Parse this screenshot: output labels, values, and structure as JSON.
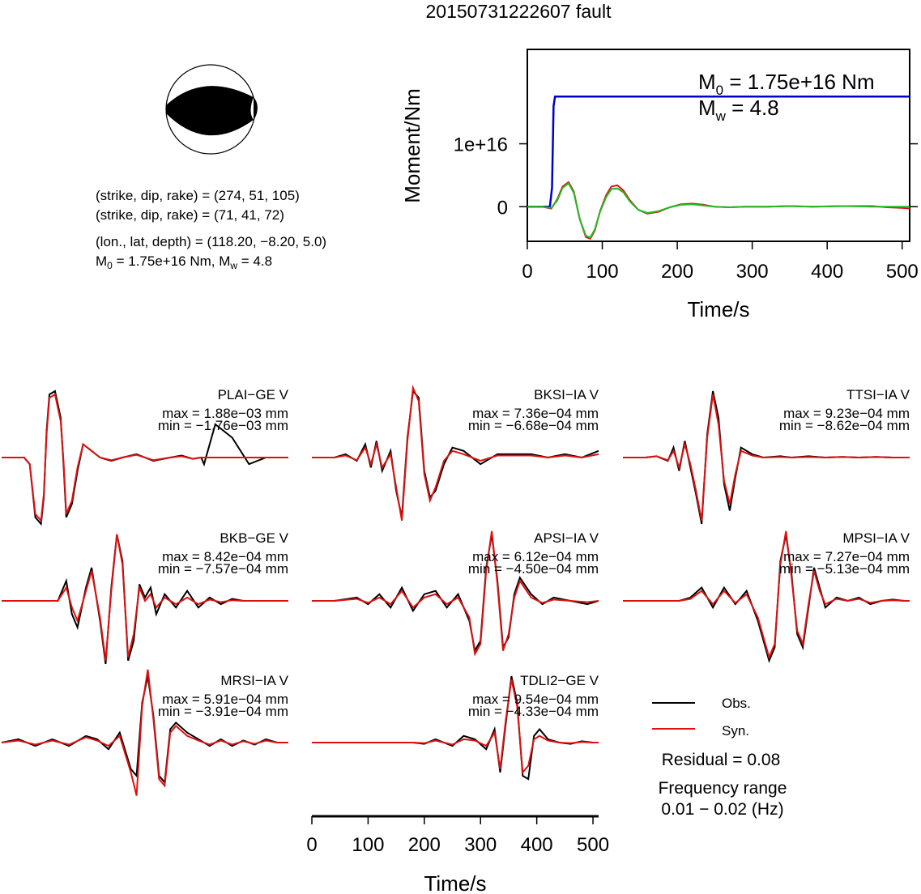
{
  "title": "20150731222607 fault",
  "source_params": {
    "strike_line_1": "(strike, dip, rake) = (274, 51, 105)",
    "strike_line_2": "(strike, dip, rake) = (71, 41, 72)",
    "location_line": "(lon., lat, depth) = (118.20, −8.20, 5.0)",
    "moment_prefix": "M",
    "moment_sub": "0",
    "moment_mid": " = 1.75e+16 Nm, M",
    "mw_sub": "w",
    "moment_suffix": " = 4.8"
  },
  "moment_panel": {
    "m0_label": "M",
    "m0_sub": "0",
    "m0_value": " = 1.75e+16 Nm",
    "mw_label": "M",
    "mw_sub": "w",
    "mw_value": " = 4.8"
  },
  "legend": {
    "obs_label": "Obs.",
    "syn_label": "Syn.",
    "residual": "Residual = 0.08",
    "freq_title": "Frequency range",
    "freq_value": "0.01 − 0.02 (Hz)"
  },
  "colors": {
    "observed": "#000000",
    "synthetic": "#dd1111",
    "moment": "#0000cc",
    "stf_green": "#22bb22"
  },
  "chart_data": [
    {
      "type": "line",
      "ylabel": "Moment/Nm",
      "xlabel": "Time/s",
      "xlim": [
        0,
        510
      ],
      "ylim": [
        -5500000000000000.0,
        2.5e+16
      ],
      "xticks": [
        0,
        100,
        200,
        300,
        400,
        500
      ],
      "yticks": [
        0,
        1e+16
      ],
      "ytick_labels": [
        "0",
        "1e+16"
      ],
      "series": [
        {
          "color": "#0000cc",
          "x": [
            0,
            30,
            33,
            35,
            37,
            510
          ],
          "y": [
            0,
            0,
            3000000000000000.0,
            1.6e+16,
            1.75e+16,
            1.75e+16
          ]
        },
        {
          "color": "#dd1111",
          "x": [
            0,
            20,
            32,
            40,
            47,
            55,
            62,
            70,
            78,
            84,
            90,
            97,
            105,
            112,
            120,
            128,
            137,
            148,
            160,
            175,
            190,
            205,
            220,
            235,
            250,
            270,
            290,
            320,
            350,
            380,
            420,
            460,
            480,
            500,
            510
          ],
          "y": [
            0,
            0,
            -300000000000000.0,
            1200000000000000.0,
            3200000000000000.0,
            3900000000000000.0,
            2400000000000000.0,
            -2000000000000000.0,
            -4800000000000000.0,
            -5100000000000000.0,
            -3800000000000000.0,
            -700000000000000.0,
            1800000000000000.0,
            3200000000000000.0,
            3400000000000000.0,
            2600000000000000.0,
            1000000000000000.0,
            -500000000000000.0,
            -1100000000000000.0,
            -800000000000000.0,
            -100000000000000.0,
            400000000000000.0,
            500000000000000.0,
            300000000000000.0,
            0,
            -100000000000000.0,
            0,
            0,
            100000000000000.0,
            0,
            100000000000000.0,
            100000000000000.0,
            -100000000000000.0,
            -200000000000000.0,
            -300000000000000.0
          ]
        },
        {
          "color": "#22bb22",
          "x": [
            0,
            20,
            32,
            40,
            47,
            55,
            62,
            70,
            78,
            84,
            90,
            97,
            105,
            112,
            120,
            128,
            137,
            148,
            160,
            175,
            190,
            205,
            220,
            235,
            250,
            270,
            290,
            320,
            350,
            380,
            420,
            460,
            480,
            500,
            510
          ],
          "y": [
            0,
            0,
            -200000000000000.0,
            1000000000000000.0,
            3000000000000000.0,
            3700000000000000.0,
            2200000000000000.0,
            -2000000000000000.0,
            -4600000000000000.0,
            -4900000000000000.0,
            -3600000000000000.0,
            -800000000000000.0,
            1500000000000000.0,
            2800000000000000.0,
            2900000000000000.0,
            2300000000000000.0,
            800000000000000.0,
            -500000000000000.0,
            -1000000000000000.0,
            -700000000000000.0,
            -100000000000000.0,
            300000000000000.0,
            400000000000000.0,
            200000000000000.0,
            0,
            -100000000000000.0,
            0,
            0,
            100000000000000.0,
            0,
            100000000000000.0,
            0,
            0,
            0,
            0
          ]
        }
      ]
    },
    {
      "type": "line",
      "xlabel": "Time/s",
      "xlim": [
        0,
        510
      ],
      "xticks": [
        0,
        100,
        200,
        300,
        400,
        500
      ],
      "stations": [
        {
          "name": "PLAI−GE V",
          "max": "max = 1.88e−03 mm",
          "min": "min = −1.76e−03 mm",
          "x": [
            0,
            40,
            50,
            60,
            70,
            75,
            80,
            85,
            95,
            105,
            110,
            115,
            125,
            135,
            145,
            160,
            175,
            195,
            215,
            240,
            270,
            300,
            320,
            340,
            355,
            360,
            380,
            410,
            440,
            470,
            500,
            510
          ],
          "obs": [
            0,
            0,
            -0.1,
            -0.9,
            -1.0,
            -0.6,
            0.4,
            0.95,
            1.0,
            0.6,
            -0.1,
            -0.9,
            -0.7,
            -0.2,
            0.2,
            0.1,
            0,
            -0.05,
            0,
            0.05,
            -0.05,
            0,
            0.03,
            -0.02,
            0,
            -0.1,
            0.5,
            0.3,
            -0.1,
            0,
            0,
            0
          ],
          "syn": [
            0,
            0,
            -0.1,
            -0.85,
            -0.95,
            -0.55,
            0.35,
            0.9,
            0.95,
            0.55,
            -0.05,
            -0.85,
            -0.65,
            -0.15,
            0.2,
            0.1,
            0,
            -0.04,
            0,
            0.04,
            -0.04,
            0,
            0.02,
            -0.02,
            0,
            0,
            0,
            0,
            0,
            0,
            0,
            0
          ]
        },
        {
          "name": "BKSI−IA V",
          "max": "max = 7.36e−04 mm",
          "min": "min = −6.68e−04 mm",
          "x": [
            0,
            40,
            60,
            80,
            95,
            105,
            115,
            125,
            140,
            150,
            160,
            170,
            180,
            190,
            200,
            210,
            220,
            235,
            250,
            270,
            300,
            330,
            360,
            390,
            420,
            450,
            480,
            510
          ],
          "obs": [
            0,
            0,
            0.05,
            -0.05,
            0.2,
            -0.15,
            0.25,
            -0.2,
            0.1,
            -0.5,
            -0.9,
            0.3,
            1.0,
            0.9,
            -0.2,
            -0.6,
            -0.5,
            -0.1,
            0.15,
            0.1,
            -0.1,
            0.05,
            0.05,
            0.05,
            0,
            0.05,
            0,
            0.1
          ],
          "syn": [
            0,
            0,
            0.03,
            -0.04,
            0.15,
            -0.1,
            0.2,
            -0.15,
            0.05,
            -0.45,
            -0.95,
            0.25,
            1.05,
            0.85,
            -0.25,
            -0.65,
            -0.45,
            -0.05,
            0.1,
            0.05,
            -0.05,
            0.03,
            0.03,
            0.03,
            0,
            0.03,
            0,
            0.05
          ]
        },
        {
          "name": "TTSI−IA V",
          "max": "max = 9.23e−04 mm",
          "min": "min = −8.62e−04 mm",
          "x": [
            0,
            40,
            60,
            80,
            90,
            100,
            110,
            120,
            130,
            140,
            150,
            160,
            170,
            180,
            190,
            200,
            210,
            230,
            250,
            280,
            300,
            330,
            360,
            390,
            420,
            450,
            480,
            510
          ],
          "obs": [
            0,
            0,
            0.02,
            -0.05,
            0.15,
            -0.2,
            0.25,
            -0.15,
            -0.55,
            -1.0,
            0.35,
            1.0,
            0.6,
            -0.4,
            -0.8,
            -0.3,
            0.15,
            0.05,
            0,
            0.02,
            0,
            0.02,
            0,
            0.01,
            0,
            0.01,
            0,
            0
          ],
          "syn": [
            0,
            0,
            0.02,
            -0.04,
            0.1,
            -0.15,
            0.2,
            -0.1,
            -0.5,
            -0.95,
            0.3,
            0.95,
            0.5,
            -0.35,
            -0.7,
            -0.25,
            0.1,
            0.03,
            0,
            0.01,
            0,
            0.01,
            0,
            0.01,
            0,
            0.01,
            0,
            0
          ]
        },
        {
          "name": "BKB−GE V",
          "max": "max = 8.42e−04 mm",
          "min": "min = −7.57e−04 mm",
          "x": [
            0,
            40,
            80,
            100,
            115,
            125,
            135,
            150,
            160,
            175,
            185,
            195,
            205,
            215,
            225,
            235,
            245,
            255,
            265,
            275,
            290,
            310,
            330,
            350,
            370,
            390,
            410,
            430,
            450,
            470,
            490,
            510
          ],
          "obs": [
            0,
            0,
            0,
            0,
            0.3,
            -0.2,
            -0.4,
            0.2,
            0.5,
            -0.3,
            -0.95,
            0.2,
            1.0,
            0.6,
            -0.9,
            -0.6,
            0.25,
            0.05,
            0.2,
            -0.2,
            0.1,
            -0.1,
            0.15,
            -0.1,
            0.05,
            -0.05,
            0.03,
            0,
            0,
            0,
            0,
            0
          ],
          "syn": [
            0,
            0,
            0,
            0,
            0.2,
            -0.1,
            -0.3,
            0.15,
            0.45,
            -0.25,
            -0.9,
            0.15,
            1.0,
            0.55,
            -0.85,
            -0.5,
            0.2,
            0,
            0.1,
            -0.1,
            0.05,
            -0.05,
            0.05,
            -0.05,
            0.02,
            -0.02,
            0.01,
            0,
            0,
            0,
            0,
            0
          ]
        },
        {
          "name": "APSI−IA V",
          "max": "max = 6.12e−04 mm",
          "min": "min = −4.50e−04 mm",
          "x": [
            0,
            40,
            80,
            100,
            120,
            140,
            160,
            180,
            200,
            220,
            240,
            260,
            280,
            290,
            300,
            310,
            320,
            330,
            340,
            350,
            360,
            370,
            390,
            410,
            430,
            460,
            490,
            510
          ],
          "obs": [
            0,
            0,
            0.05,
            -0.05,
            0.1,
            -0.1,
            0.2,
            -0.15,
            0.1,
            0.15,
            -0.1,
            0.1,
            -0.3,
            -0.75,
            -0.6,
            0.5,
            1.0,
            0.3,
            -0.7,
            -0.55,
            0.1,
            0.35,
            0.1,
            -0.05,
            0.05,
            0,
            -0.05,
            0
          ],
          "syn": [
            0,
            0,
            0.03,
            -0.03,
            0.05,
            -0.05,
            0.15,
            -0.1,
            0.05,
            0.1,
            -0.05,
            0.05,
            -0.25,
            -0.8,
            -0.65,
            0.45,
            1.05,
            0.25,
            -0.75,
            -0.5,
            0.05,
            0.3,
            0.05,
            -0.03,
            0.02,
            0,
            -0.02,
            0
          ]
        },
        {
          "name": "MPSI−IA V",
          "max": "max = 7.27e−04 mm",
          "min": "min = −5.13e−04 mm",
          "x": [
            0,
            60,
            100,
            120,
            140,
            160,
            180,
            200,
            220,
            240,
            260,
            270,
            280,
            290,
            300,
            310,
            320,
            330,
            340,
            350,
            360,
            380,
            400,
            420,
            440,
            460,
            480,
            500,
            510
          ],
          "obs": [
            0,
            0,
            0,
            0.05,
            0.2,
            -0.1,
            0.2,
            -0.05,
            0.15,
            -0.3,
            -0.9,
            -0.7,
            0.6,
            1.0,
            0.4,
            -0.5,
            -0.7,
            -0.1,
            0.5,
            0.2,
            -0.1,
            0.05,
            0,
            0.05,
            -0.05,
            0,
            0.02,
            0,
            0
          ],
          "syn": [
            0,
            0,
            0,
            0.03,
            0.15,
            -0.05,
            0.15,
            -0.03,
            0.1,
            -0.25,
            -0.85,
            -0.65,
            0.55,
            1.05,
            0.35,
            -0.45,
            -0.65,
            -0.05,
            0.45,
            0.15,
            -0.05,
            0.03,
            0,
            0.03,
            -0.03,
            0,
            0.01,
            0,
            0
          ]
        },
        {
          "name": "MRSI−IA V",
          "max": "max = 5.91e−04 mm",
          "min": "min = −3.91e−04 mm",
          "x": [
            0,
            30,
            60,
            90,
            120,
            150,
            170,
            190,
            210,
            230,
            240,
            250,
            260,
            270,
            280,
            290,
            300,
            310,
            330,
            350,
            370,
            390,
            410,
            430,
            450,
            470,
            490,
            510
          ],
          "obs": [
            0,
            0.05,
            -0.05,
            0.05,
            -0.05,
            0.1,
            0.05,
            -0.1,
            0.15,
            -0.4,
            -0.5,
            0.6,
            1.0,
            0.4,
            -0.5,
            -0.6,
            0.2,
            0.3,
            0.15,
            0.05,
            -0.05,
            0.05,
            -0.05,
            0.03,
            -0.03,
            0.05,
            0,
            0
          ],
          "syn": [
            0,
            0.03,
            -0.03,
            0.03,
            -0.03,
            0.08,
            0.03,
            -0.05,
            0.1,
            -0.45,
            -0.8,
            0.55,
            1.1,
            0.35,
            -0.55,
            -0.65,
            0.15,
            0.25,
            0.1,
            0.03,
            -0.03,
            0.03,
            -0.03,
            0.02,
            -0.02,
            0.03,
            0,
            0
          ]
        },
        {
          "name": "TDLI2−GE V",
          "max": "max = 9.54e−04 mm",
          "min": "min = −4.33e−04 mm",
          "x": [
            0,
            60,
            120,
            180,
            200,
            220,
            250,
            270,
            290,
            310,
            325,
            335,
            345,
            355,
            365,
            375,
            385,
            395,
            405,
            420,
            440,
            460,
            480,
            500,
            510
          ],
          "obs": [
            0,
            0,
            0,
            0,
            -0.02,
            0.05,
            -0.05,
            0.1,
            0.05,
            -0.1,
            0.2,
            -0.45,
            0.3,
            1.0,
            0.6,
            -0.5,
            -0.55,
            0.1,
            0.2,
            0.05,
            0,
            -0.02,
            0.02,
            0,
            0
          ],
          "syn": [
            0,
            0,
            0,
            0,
            -0.01,
            0.03,
            -0.03,
            0.05,
            0.03,
            -0.05,
            0.15,
            -0.4,
            0.35,
            0.95,
            0.55,
            -0.45,
            -0.35,
            0.05,
            0.1,
            0.03,
            0,
            -0.01,
            0.01,
            0,
            0
          ]
        }
      ]
    }
  ]
}
